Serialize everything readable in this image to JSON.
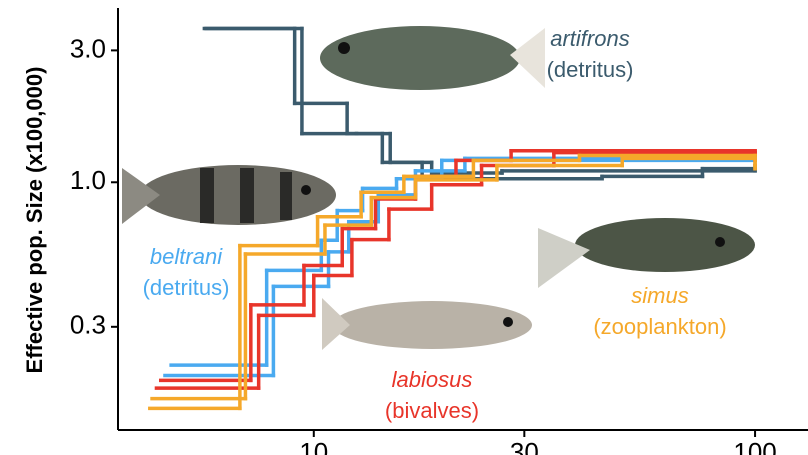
{
  "chart_data": {
    "type": "step",
    "y_label": "Effective pop. Size (x100,000)",
    "xlog": true,
    "ylog": true,
    "xlim": [
      3.6,
      120
    ],
    "ylim": [
      0.127,
      4.2
    ],
    "xticks": [
      10,
      30,
      100
    ],
    "yticks": [
      0.3,
      {
        "value": 1,
        "label": "1.0"
      },
      {
        "value": 3,
        "label": "3.0"
      }
    ],
    "series": [
      {
        "color": "#3b5b6d",
        "x": [
          5.65,
          9.05,
          11.9,
          14.3,
          17.6,
          45,
          76,
          100
        ],
        "values": [
          3.6,
          1.93,
          1.5,
          1.18,
          1.03,
          1.05,
          1.12,
          1.12
        ]
      },
      {
        "color": "#3b5b6d",
        "x": [
          5.7,
          9.4,
          12.5,
          14.9,
          18.5,
          26.7,
          100
        ],
        "values": [
          3.6,
          1.5,
          1.5,
          1.18,
          1.08,
          1.1,
          1.15
        ]
      },
      {
        "color": "#4aaaf0",
        "x": [
          4.75,
          7.82,
          10.4,
          11.3,
          12.9,
          15.4,
          19.5,
          100
        ],
        "values": [
          0.218,
          0.48,
          0.617,
          0.79,
          0.95,
          1.03,
          1.2,
          1.2
        ]
      },
      {
        "color": "#4aaaf0",
        "x": [
          4.6,
          8.1,
          10.8,
          12.0,
          14.0,
          17.0,
          22,
          100
        ],
        "values": [
          0.2,
          0.42,
          0.56,
          0.72,
          0.9,
          1.1,
          1.22,
          1.22
        ]
      },
      {
        "color": "#e8352a",
        "x": [
          4.5,
          7.2,
          9.5,
          11.6,
          13.8,
          17,
          21,
          28,
          100
        ],
        "values": [
          0.192,
          0.36,
          0.5,
          0.68,
          0.87,
          1.05,
          1.2,
          1.3,
          1.25
        ]
      },
      {
        "color": "#e8352a",
        "x": [
          4.4,
          7.5,
          10.0,
          12.2,
          14.8,
          18.5,
          24,
          35,
          100
        ],
        "values": [
          0.18,
          0.33,
          0.46,
          0.62,
          0.8,
          0.98,
          1.15,
          1.28,
          1.2
        ]
      },
      {
        "color": "#f5a82a",
        "x": [
          4.25,
          6.8,
          10.2,
          12.8,
          16,
          23,
          40,
          100
        ],
        "values": [
          0.152,
          0.59,
          0.75,
          0.92,
          1.05,
          1.2,
          1.25,
          1.15
        ]
      },
      {
        "color": "#f5a82a",
        "x": [
          4.3,
          7.0,
          10.6,
          13.5,
          17,
          26,
          50,
          100
        ],
        "values": [
          0.165,
          0.55,
          0.7,
          0.88,
          1.02,
          1.15,
          1.22,
          1.12
        ]
      }
    ],
    "annotations": [
      {
        "name": "artifrons",
        "diet": "(detritus)",
        "color": "#3b5b6d"
      },
      {
        "name": "beltrani",
        "diet": "(detritus)",
        "color": "#4aaaf0"
      },
      {
        "name": "labiosus",
        "diet": "(bivalves)",
        "color": "#e8352a"
      },
      {
        "name": "simus",
        "diet": "(zooplankton)",
        "color": "#f5a82a"
      }
    ]
  }
}
